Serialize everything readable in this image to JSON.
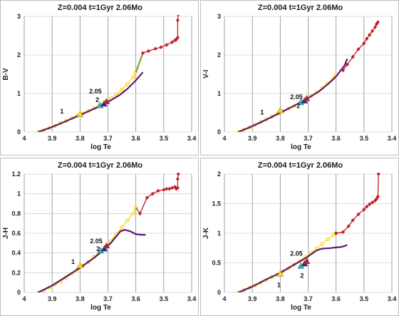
{
  "chart_data": [
    {
      "type": "line",
      "title": "Z=0.004  t=1Gyr  2.06Mo",
      "xlabel": "log Te",
      "ylabel": "B-V",
      "xlim": [
        4.0,
        3.4
      ],
      "ylim": [
        0,
        3
      ],
      "x_ticks": [
        "4",
        "3.9",
        "3.8",
        "3.7",
        "3.6",
        "3.5",
        "3.4"
      ],
      "y_ticks": [
        "0",
        "1",
        "2",
        "3"
      ],
      "annotations": [
        {
          "text": "1",
          "x": 3.865,
          "y": 0.48
        },
        {
          "text": "2",
          "x": 3.738,
          "y": 0.78
        },
        {
          "text": "2.05",
          "x": 3.745,
          "y": 1.0
        }
      ],
      "series": [
        {
          "color": "#ffd21a",
          "marker": "circle",
          "x": [
            3.95,
            3.93,
            3.91,
            3.89,
            3.87,
            3.85,
            3.83,
            3.81,
            3.79,
            3.77,
            3.75,
            3.73,
            3.71,
            3.69,
            3.67,
            3.65,
            3.63,
            3.61,
            3.6
          ],
          "y": [
            0.0,
            0.05,
            0.1,
            0.16,
            0.23,
            0.29,
            0.36,
            0.42,
            0.48,
            0.55,
            0.62,
            0.7,
            0.78,
            0.87,
            0.98,
            1.1,
            1.25,
            1.42,
            1.55
          ]
        },
        {
          "color": "#5a1a78",
          "marker": "none",
          "x": [
            3.95,
            3.9,
            3.85,
            3.8,
            3.75,
            3.72,
            3.69,
            3.66,
            3.63,
            3.6,
            3.575
          ],
          "y": [
            0.0,
            0.13,
            0.28,
            0.44,
            0.6,
            0.7,
            0.82,
            0.95,
            1.12,
            1.34,
            1.55
          ]
        },
        {
          "color": "#8a9a3a",
          "marker": "none",
          "x": [
            3.6,
            3.575
          ],
          "y": [
            1.55,
            2.05
          ]
        },
        {
          "color": "#c41e2a",
          "marker": "diamond",
          "x": [
            3.575,
            3.555,
            3.53,
            3.51,
            3.49,
            3.47,
            3.46,
            3.455,
            3.45,
            3.45,
            3.448
          ],
          "y": [
            2.05,
            2.1,
            2.16,
            2.2,
            2.26,
            2.33,
            2.38,
            2.4,
            2.45,
            2.9,
            3.05
          ]
        }
      ],
      "highlights": [
        {
          "color": "#ffd21a",
          "marker": "triangle",
          "x": 3.8,
          "y": 0.45
        },
        {
          "color": "#2ab0c8",
          "marker": "triangle",
          "x": 3.728,
          "y": 0.68
        },
        {
          "color": "#2a2a8a",
          "marker": "triangle",
          "x": 3.714,
          "y": 0.72
        },
        {
          "color": "#c41e2a",
          "marker": "triangle",
          "x": 3.705,
          "y": 0.78
        }
      ]
    },
    {
      "type": "line",
      "title": "Z=0.004  t=1Gyr  2.06Mo",
      "xlabel": "log Te",
      "ylabel": "V-I",
      "xlim": [
        4.0,
        3.4
      ],
      "ylim": [
        0,
        3
      ],
      "x_ticks": [
        "4",
        "3.9",
        "3.8",
        "3.7",
        "3.6",
        "3.5",
        "3.4"
      ],
      "y_ticks": [
        "0",
        "1",
        "2",
        "3"
      ],
      "annotations": [
        {
          "text": "1",
          "x": 3.865,
          "y": 0.45
        },
        {
          "text": "2",
          "x": 3.735,
          "y": 0.62
        },
        {
          "text": "2.05",
          "x": 3.742,
          "y": 0.85
        }
      ],
      "series": [
        {
          "color": "#ffd21a",
          "marker": "circle",
          "x": [
            3.95,
            3.93,
            3.91,
            3.89,
            3.87,
            3.85,
            3.83,
            3.81,
            3.79,
            3.77,
            3.75,
            3.73,
            3.71,
            3.69,
            3.67,
            3.65,
            3.63,
            3.61,
            3.6
          ],
          "y": [
            0.0,
            0.06,
            0.12,
            0.19,
            0.26,
            0.33,
            0.4,
            0.47,
            0.54,
            0.61,
            0.68,
            0.76,
            0.84,
            0.93,
            1.03,
            1.14,
            1.26,
            1.4,
            1.48
          ]
        },
        {
          "color": "#5a1a78",
          "marker": "none",
          "x": [
            3.95,
            3.9,
            3.85,
            3.8,
            3.75,
            3.7,
            3.66,
            3.62,
            3.6,
            3.57,
            3.56
          ],
          "y": [
            0.0,
            0.15,
            0.32,
            0.5,
            0.68,
            0.88,
            1.06,
            1.3,
            1.44,
            1.72,
            1.9
          ]
        },
        {
          "color": "#c41e2a",
          "marker": "diamond",
          "x": [
            3.575,
            3.56,
            3.54,
            3.52,
            3.5,
            3.49,
            3.48,
            3.47,
            3.46,
            3.455,
            3.45
          ],
          "y": [
            1.6,
            1.75,
            1.95,
            2.15,
            2.3,
            2.42,
            2.52,
            2.62,
            2.72,
            2.8,
            2.85
          ]
        }
      ],
      "highlights": [
        {
          "color": "#ffd21a",
          "marker": "triangle",
          "x": 3.8,
          "y": 0.55
        },
        {
          "color": "#2ab0c8",
          "marker": "triangle",
          "x": 3.726,
          "y": 0.76
        },
        {
          "color": "#2a2a8a",
          "marker": "triangle",
          "x": 3.713,
          "y": 0.8
        },
        {
          "color": "#c41e2a",
          "marker": "triangle",
          "x": 3.705,
          "y": 0.86
        }
      ]
    },
    {
      "type": "line",
      "title": "Z=0.004  t=1Gyr  2.06Mo",
      "xlabel": "log Te",
      "ylabel": "J-H",
      "xlim": [
        4.0,
        3.4
      ],
      "ylim": [
        0,
        1.2
      ],
      "x_ticks": [
        "4",
        "3.9",
        "3.8",
        "3.7",
        "3.6",
        "3.5",
        "3.4"
      ],
      "y_ticks": [
        "0",
        "0.2",
        "0.4",
        "0.6",
        "0.8",
        "1",
        "1.2"
      ],
      "annotations": [
        {
          "text": "1",
          "x": 3.825,
          "y": 0.29
        },
        {
          "text": "2",
          "x": 3.735,
          "y": 0.42
        },
        {
          "text": "2.05",
          "x": 3.742,
          "y": 0.5
        }
      ],
      "series": [
        {
          "color": "#ffd21a",
          "marker": "circle",
          "x": [
            3.95,
            3.93,
            3.91,
            3.89,
            3.87,
            3.85,
            3.83,
            3.81,
            3.79,
            3.77,
            3.75,
            3.73,
            3.71,
            3.69,
            3.67,
            3.65,
            3.63,
            3.61,
            3.6
          ],
          "y": [
            0.0,
            0.02,
            0.05,
            0.08,
            0.11,
            0.15,
            0.19,
            0.23,
            0.27,
            0.31,
            0.36,
            0.41,
            0.46,
            0.52,
            0.59,
            0.66,
            0.73,
            0.8,
            0.86
          ]
        },
        {
          "color": "#5a1a78",
          "marker": "none",
          "x": [
            3.95,
            3.9,
            3.85,
            3.8,
            3.75,
            3.72,
            3.69,
            3.67,
            3.655,
            3.64,
            3.62,
            3.6,
            3.58,
            3.565
          ],
          "y": [
            0.0,
            0.07,
            0.16,
            0.25,
            0.35,
            0.42,
            0.5,
            0.57,
            0.62,
            0.635,
            0.62,
            0.59,
            0.585,
            0.585
          ]
        },
        {
          "color": "#8a9a3a",
          "marker": "none",
          "x": [
            3.6,
            3.585
          ],
          "y": [
            0.86,
            0.8
          ]
        },
        {
          "color": "#c41e2a",
          "marker": "diamond",
          "x": [
            3.585,
            3.56,
            3.54,
            3.52,
            3.5,
            3.49,
            3.48,
            3.47,
            3.46,
            3.455,
            3.45,
            3.45,
            3.448
          ],
          "y": [
            0.8,
            0.96,
            1.0,
            1.03,
            1.04,
            1.05,
            1.05,
            1.06,
            1.07,
            1.05,
            1.06,
            1.15,
            1.2
          ]
        }
      ],
      "highlights": [
        {
          "color": "#ffd21a",
          "marker": "triangle",
          "x": 3.8,
          "y": 0.27
        },
        {
          "color": "#2ab0c8",
          "marker": "triangle",
          "x": 3.726,
          "y": 0.42
        },
        {
          "color": "#2a2a8a",
          "marker": "triangle",
          "x": 3.713,
          "y": 0.44
        },
        {
          "color": "#c41e2a",
          "marker": "triangle",
          "x": 3.705,
          "y": 0.47
        }
      ]
    },
    {
      "type": "line",
      "title": "Z=0.004  t=1Gyr  2.06Mo",
      "xlabel": "log Te",
      "ylabel": "J-K",
      "xlim": [
        4.0,
        3.4
      ],
      "ylim": [
        0,
        2
      ],
      "x_ticks": [
        "4",
        "3.9",
        "3.8",
        "3.7",
        "3.6",
        "3.5",
        "3.4"
      ],
      "y_ticks": [
        "0",
        "0.5",
        "1",
        "1.5",
        "2"
      ],
      "annotations": [
        {
          "text": "1",
          "x": 3.805,
          "y": 0.09
        },
        {
          "text": "2",
          "x": 3.722,
          "y": 0.25
        },
        {
          "text": "2.05",
          "x": 3.742,
          "y": 0.62
        }
      ],
      "series": [
        {
          "color": "#ffd21a",
          "marker": "circle",
          "x": [
            3.95,
            3.93,
            3.91,
            3.89,
            3.87,
            3.85,
            3.83,
            3.81,
            3.79,
            3.77,
            3.75,
            3.73,
            3.71,
            3.69,
            3.67,
            3.65,
            3.63,
            3.61,
            3.6
          ],
          "y": [
            0.0,
            0.04,
            0.08,
            0.12,
            0.16,
            0.21,
            0.26,
            0.31,
            0.36,
            0.41,
            0.47,
            0.53,
            0.6,
            0.67,
            0.74,
            0.82,
            0.9,
            0.97,
            1.0
          ]
        },
        {
          "color": "#5a1a78",
          "marker": "none",
          "x": [
            3.95,
            3.9,
            3.85,
            3.8,
            3.75,
            3.72,
            3.7,
            3.685,
            3.67,
            3.65,
            3.62,
            3.6,
            3.58,
            3.56
          ],
          "y": [
            0.0,
            0.1,
            0.22,
            0.33,
            0.47,
            0.55,
            0.61,
            0.66,
            0.71,
            0.74,
            0.75,
            0.76,
            0.77,
            0.8
          ]
        },
        {
          "color": "#c41e2a",
          "marker": "diamond",
          "x": [
            3.6,
            3.575,
            3.555,
            3.54,
            3.52,
            3.5,
            3.49,
            3.48,
            3.47,
            3.46,
            3.455,
            3.45,
            3.448
          ],
          "y": [
            1.0,
            1.02,
            1.12,
            1.22,
            1.32,
            1.4,
            1.45,
            1.49,
            1.52,
            1.55,
            1.58,
            1.62,
            2.0
          ]
        }
      ],
      "highlights": [
        {
          "color": "#ffd21a",
          "marker": "triangle",
          "x": 3.8,
          "y": 0.31
        },
        {
          "color": "#2ab0c8",
          "marker": "triangle",
          "x": 3.726,
          "y": 0.44
        },
        {
          "color": "#2a2a8a",
          "marker": "triangle",
          "x": 3.713,
          "y": 0.48
        },
        {
          "color": "#c41e2a",
          "marker": "triangle",
          "x": 3.705,
          "y": 0.52
        }
      ]
    }
  ]
}
